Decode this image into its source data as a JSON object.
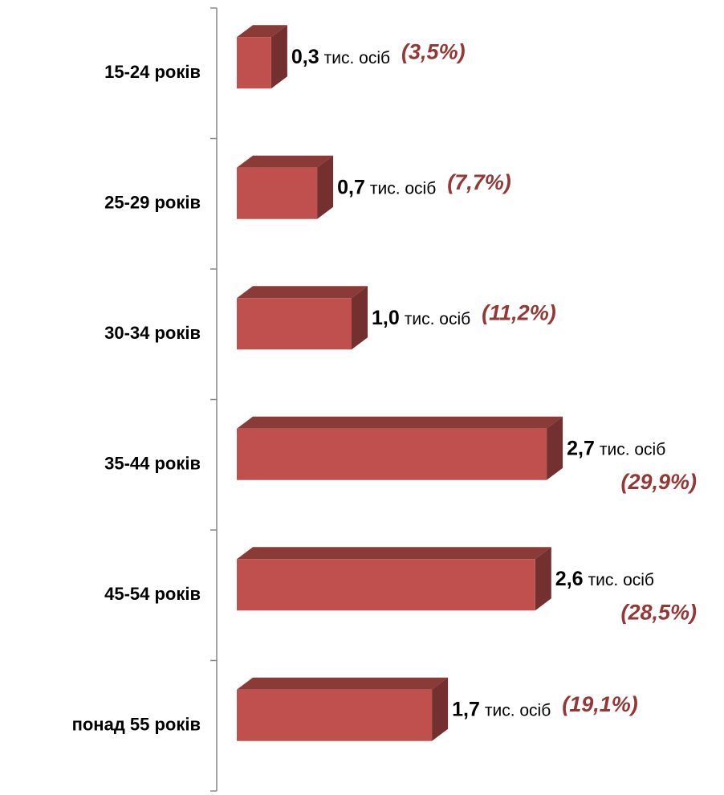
{
  "chart_data": {
    "type": "bar3d_horizontal",
    "categories": [
      "15-24 років",
      "25-29 років",
      "30-34 років",
      "35-44 років",
      "45-54 років",
      "понад 55 років"
    ],
    "values": [
      0.3,
      0.7,
      1.0,
      2.7,
      2.6,
      1.7
    ],
    "value_labels": [
      "0,3",
      "0,7",
      "1,0",
      "2,7",
      "2,6",
      "1,7"
    ],
    "unit": "тис. осіб",
    "shares": [
      3.5,
      7.7,
      11.2,
      29.9,
      28.5,
      19.1
    ],
    "share_labels": [
      "(3,5%)",
      "(7,7%)",
      "(11,2%)",
      "(29,9%)",
      "(28,5%)",
      "(19,1%)"
    ],
    "color": "#c0504d"
  }
}
